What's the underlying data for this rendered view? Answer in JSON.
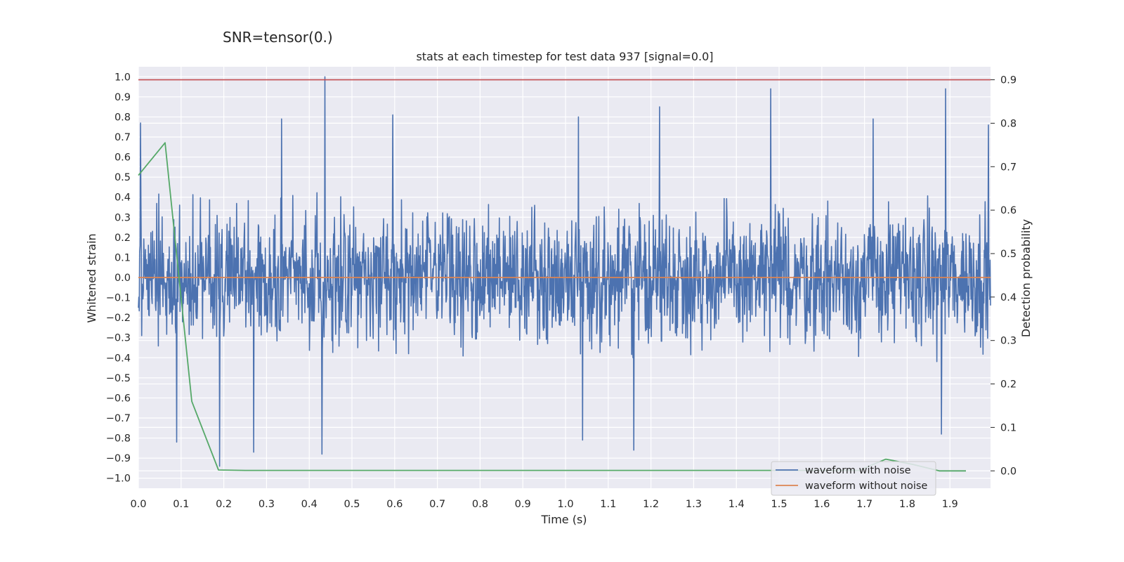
{
  "figure": {
    "suptitle": "SNR=tensor(0.)"
  },
  "chart_data": {
    "type": "line",
    "title": "stats at each timestep for test data 937 [signal=0.0]",
    "xlabel": "Time (s)",
    "ylabel": "Whitened strain",
    "ylabel_right": "Detection probability",
    "xlim": [
      0.0,
      1.995
    ],
    "ylim": [
      -1.05,
      1.05
    ],
    "ylim_right": [
      -0.04,
      0.93
    ],
    "xticks": [
      0.0,
      0.1,
      0.2,
      0.3,
      0.4,
      0.5,
      0.6,
      0.7,
      0.8,
      0.9,
      1.0,
      1.1,
      1.2,
      1.3,
      1.4,
      1.5,
      1.6,
      1.7,
      1.8,
      1.9
    ],
    "xtick_labels": [
      "0.0",
      "0.1",
      "0.2",
      "0.3",
      "0.4",
      "0.5",
      "0.6",
      "0.7",
      "0.8",
      "0.9",
      "1.0",
      "1.1",
      "1.2",
      "1.3",
      "1.4",
      "1.5",
      "1.6",
      "1.7",
      "1.8",
      "1.9"
    ],
    "yticks": [
      1.0,
      0.9,
      0.8,
      0.7,
      0.6,
      0.5,
      0.4,
      0.3,
      0.2,
      0.1,
      0.0,
      -0.1,
      -0.2,
      -0.3,
      -0.4,
      -0.5,
      -0.6,
      -0.7,
      -0.8,
      -0.9,
      -1.0
    ],
    "ytick_labels": [
      "1.0",
      "0.9",
      "0.8",
      "0.7",
      "0.6",
      "0.5",
      "0.4",
      "0.3",
      "0.2",
      "0.1",
      "0.0",
      "−0.1",
      "−0.2",
      "−0.3",
      "−0.4",
      "−0.5",
      "−0.6",
      "−0.7",
      "−0.8",
      "−0.9",
      "−1.0"
    ],
    "yticks_right": [
      0.9,
      0.8,
      0.7,
      0.6,
      0.5,
      0.4,
      0.3,
      0.2,
      0.1,
      0.0
    ],
    "ytick_labels_right": [
      "0.9",
      "0.8",
      "0.7",
      "0.6",
      "0.5",
      "0.4",
      "0.3",
      "0.2",
      "0.1",
      "0.0"
    ],
    "grid": true,
    "legend_position": "lower-right",
    "series": [
      {
        "name": "waveform with noise",
        "color": "#4c72b0",
        "axis": "left",
        "sample_count": 2048,
        "x_range": [
          0.0,
          1.995
        ],
        "envelope": 0.42,
        "peaks": [
          {
            "x": 0.005,
            "y": 0.77
          },
          {
            "x": 0.09,
            "y": -0.82
          },
          {
            "x": 0.19,
            "y": -0.94
          },
          {
            "x": 0.27,
            "y": -0.87
          },
          {
            "x": 0.335,
            "y": 0.79
          },
          {
            "x": 0.43,
            "y": -0.88
          },
          {
            "x": 0.437,
            "y": 1.0
          },
          {
            "x": 0.595,
            "y": 0.81
          },
          {
            "x": 1.03,
            "y": 0.8
          },
          {
            "x": 1.04,
            "y": -0.81
          },
          {
            "x": 1.16,
            "y": -0.86
          },
          {
            "x": 1.22,
            "y": 0.85
          },
          {
            "x": 1.48,
            "y": 0.94
          },
          {
            "x": 1.72,
            "y": 0.79
          },
          {
            "x": 1.88,
            "y": -0.78
          },
          {
            "x": 1.89,
            "y": 0.94
          },
          {
            "x": 1.99,
            "y": 0.76
          }
        ]
      },
      {
        "name": "waveform without noise",
        "color": "#dd8452",
        "axis": "left",
        "x": [
          0.0,
          1.995
        ],
        "y": [
          0.0,
          0.0
        ]
      },
      {
        "name": "",
        "color": "#55a868",
        "axis": "right",
        "x": [
          0.0,
          0.0625,
          0.125,
          0.1875,
          0.25,
          1.6875,
          1.75,
          1.8125,
          1.875,
          1.9375
        ],
        "y": [
          0.68,
          0.755,
          0.16,
          0.002,
          0.001,
          0.001,
          0.027,
          0.015,
          0.0,
          0.0
        ]
      },
      {
        "name": "",
        "color": "#c44e52",
        "axis": "right",
        "x": [
          0.0,
          1.995
        ],
        "y": [
          0.9,
          0.9
        ]
      }
    ]
  }
}
